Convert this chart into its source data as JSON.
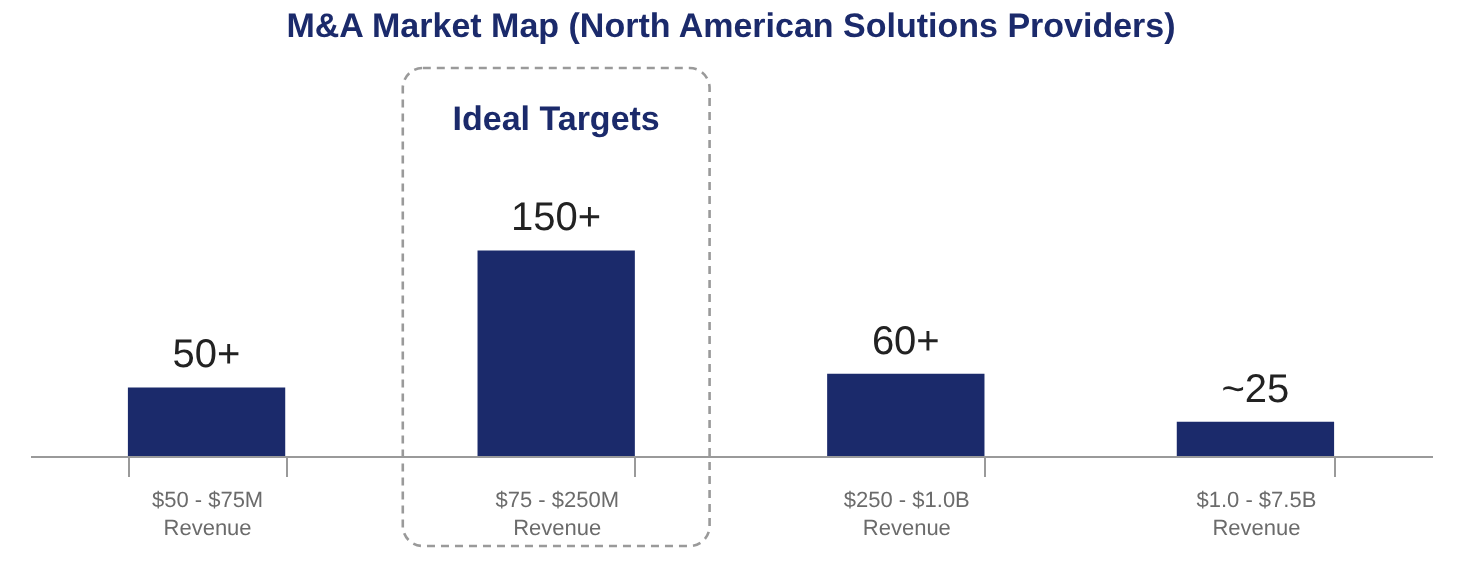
{
  "chart_data": {
    "type": "bar",
    "title": "M&A Market Map (North American Solutions Providers)",
    "categories": [
      "$50 - $75M\nRevenue",
      "$75 - $250M\nRevenue",
      "$250 - $1.0B\nRevenue",
      "$1.0 - $7.5B\nRevenue"
    ],
    "values": [
      50,
      150,
      60,
      25
    ],
    "value_labels": [
      "50+",
      "150+",
      "60+",
      "~25"
    ],
    "color": "#1b2a6b",
    "annotations": [
      "Ideal Targets"
    ],
    "grid": false
  }
}
